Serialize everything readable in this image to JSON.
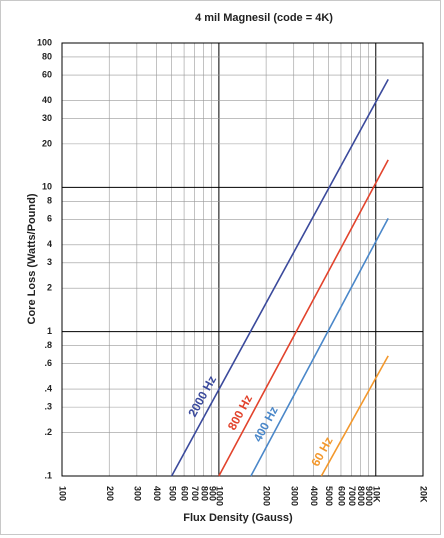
{
  "chart_data": {
    "type": "line",
    "title": "4 mil Magnesil (code = 4K)",
    "x_label": "Flux Density (Gauss)",
    "y_label": "Core Loss (Watts/Pound)",
    "xscale": "log",
    "yscale": "log",
    "grid": true,
    "xlim": [
      100,
      20000
    ],
    "ylim": [
      0.1,
      100
    ],
    "xticks": [
      100,
      200,
      300,
      400,
      500,
      600,
      700,
      800,
      900,
      1000,
      2000,
      3000,
      4000,
      5000,
      6000,
      7000,
      8000,
      9000,
      {
        "value": 10000,
        "label": "10K"
      },
      {
        "value": 20000,
        "label": "20K"
      }
    ],
    "yticks": [
      {
        "value": 0.1,
        "label": ".1"
      },
      {
        "value": 0.2,
        "label": ".2"
      },
      {
        "value": 0.3,
        "label": ".3"
      },
      {
        "value": 0.4,
        "label": ".4"
      },
      {
        "value": 0.6,
        "label": ".6"
      },
      {
        "value": 0.8,
        "label": ".8"
      },
      1,
      2,
      3,
      4,
      6,
      8,
      10,
      20,
      30,
      40,
      60,
      80,
      100
    ],
    "series": [
      {
        "name": "2000 Hz",
        "color": "#3b4a9c",
        "x": [
          500,
          12000
        ],
        "values": [
          0.1,
          56
        ]
      },
      {
        "name": "800 Hz",
        "color": "#e2432c",
        "x": [
          1000,
          12000
        ],
        "values": [
          0.1,
          15.5
        ]
      },
      {
        "name": "400 Hz",
        "color": "#4a87c9",
        "x": [
          1600,
          12000
        ],
        "values": [
          0.1,
          6.1
        ]
      },
      {
        "name": "60 Hz",
        "color": "#f3982c",
        "x": [
          4500,
          12000
        ],
        "values": [
          0.1,
          0.68
        ]
      }
    ]
  }
}
